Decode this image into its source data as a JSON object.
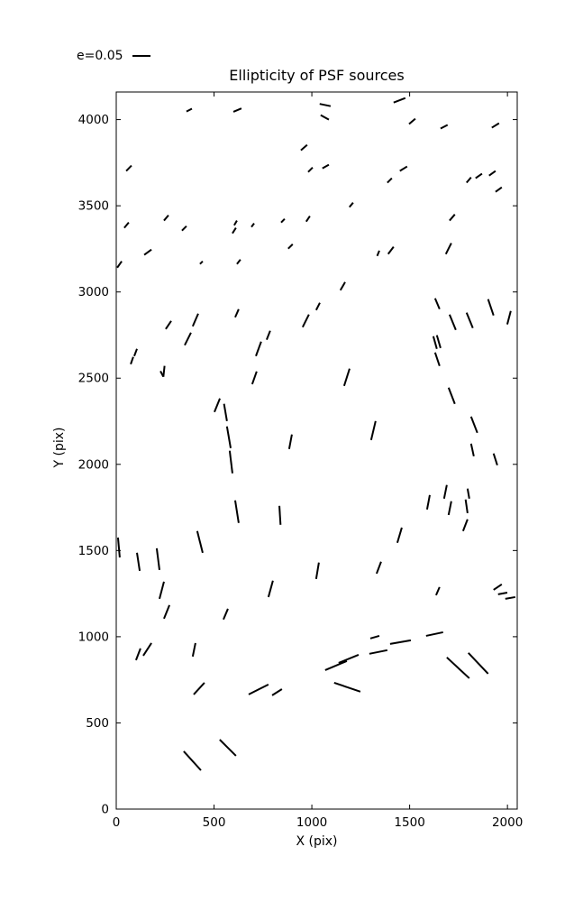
{
  "legend": {
    "label": "e=0.05"
  },
  "colors": {
    "stroke": "#000000",
    "background": "#ffffff"
  },
  "chart_data": {
    "type": "scatter",
    "subtype": "whisker-segments",
    "title": "Ellipticity of PSF sources",
    "xlabel": "X (pix)",
    "ylabel": "Y (pix)",
    "xlim": [
      0,
      2050
    ],
    "ylim": [
      0,
      4160
    ],
    "xticks": [
      0,
      500,
      1000,
      1500,
      2000
    ],
    "yticks": [
      0,
      500,
      1000,
      1500,
      2000,
      2500,
      3000,
      3500,
      4000
    ],
    "grid": false,
    "legend_position": "above-axes-top-left",
    "segments": [
      [
        359,
        4047,
        387,
        4063
      ],
      [
        599,
        4045,
        640,
        4065
      ],
      [
        1040,
        4091,
        1096,
        4078
      ],
      [
        1045,
        4026,
        1087,
        4000
      ],
      [
        1418,
        4099,
        1478,
        4125
      ],
      [
        1497,
        3974,
        1529,
        4005
      ],
      [
        1658,
        3948,
        1694,
        3969
      ],
      [
        1920,
        3953,
        1957,
        3979
      ],
      [
        51,
        3702,
        78,
        3733
      ],
      [
        944,
        3822,
        976,
        3853
      ],
      [
        981,
        3696,
        1004,
        3722
      ],
      [
        1054,
        3717,
        1087,
        3738
      ],
      [
        1450,
        3702,
        1487,
        3728
      ],
      [
        1386,
        3634,
        1409,
        3660
      ],
      [
        1791,
        3634,
        1814,
        3665
      ],
      [
        1837,
        3660,
        1870,
        3686
      ],
      [
        1906,
        3675,
        1939,
        3702
      ],
      [
        1939,
        3581,
        1971,
        3607
      ],
      [
        244,
        3414,
        267,
        3445
      ],
      [
        41,
        3372,
        64,
        3403
      ],
      [
        336,
        3356,
        359,
        3382
      ],
      [
        603,
        3387,
        617,
        3414
      ],
      [
        594,
        3340,
        612,
        3372
      ],
      [
        1192,
        3492,
        1211,
        3518
      ],
      [
        843,
        3403,
        861,
        3424
      ],
      [
        971,
        3408,
        990,
        3440
      ],
      [
        691,
        3377,
        705,
        3398
      ],
      [
        1704,
        3414,
        1731,
        3450
      ],
      [
        143,
        3215,
        180,
        3246
      ],
      [
        5,
        3141,
        28,
        3178
      ],
      [
        428,
        3162,
        442,
        3178
      ],
      [
        617,
        3162,
        635,
        3188
      ],
      [
        879,
        3251,
        902,
        3277
      ],
      [
        1334,
        3209,
        1345,
        3240
      ],
      [
        1685,
        3220,
        1713,
        3283
      ],
      [
        1390,
        3220,
        1418,
        3262
      ],
      [
        253,
        2785,
        281,
        2832
      ],
      [
        391,
        2801,
        419,
        2874
      ],
      [
        608,
        2853,
        626,
        2900
      ],
      [
        350,
        2691,
        382,
        2764
      ],
      [
        1146,
        3010,
        1170,
        3057
      ],
      [
        1022,
        2895,
        1041,
        2937
      ],
      [
        953,
        2796,
        985,
        2869
      ],
      [
        1630,
        2963,
        1653,
        2901
      ],
      [
        1704,
        2869,
        1736,
        2780
      ],
      [
        1791,
        2880,
        1823,
        2791
      ],
      [
        1901,
        2958,
        1929,
        2864
      ],
      [
        1999,
        2812,
        2017,
        2890
      ],
      [
        74,
        2581,
        87,
        2623
      ],
      [
        92,
        2628,
        106,
        2670
      ],
      [
        241,
        2508,
        247,
        2571
      ],
      [
        226,
        2541,
        241,
        2508
      ],
      [
        769,
        2723,
        787,
        2775
      ],
      [
        714,
        2628,
        741,
        2712
      ],
      [
        695,
        2465,
        718,
        2539
      ],
      [
        1165,
        2455,
        1193,
        2555
      ],
      [
        1621,
        2743,
        1639,
        2670
      ],
      [
        1639,
        2749,
        1658,
        2675
      ],
      [
        1630,
        2649,
        1653,
        2571
      ],
      [
        502,
        2304,
        530,
        2382
      ],
      [
        551,
        2351,
        566,
        2251
      ],
      [
        566,
        2220,
        585,
        2094
      ],
      [
        580,
        2079,
        594,
        1948
      ],
      [
        1699,
        2445,
        1731,
        2351
      ],
      [
        1814,
        2277,
        1846,
        2183
      ],
      [
        884,
        2089,
        898,
        2173
      ],
      [
        1303,
        2141,
        1326,
        2251
      ],
      [
        1814,
        2120,
        1828,
        2047
      ],
      [
        1929,
        2063,
        1948,
        1995
      ],
      [
        834,
        1759,
        840,
        1649
      ],
      [
        608,
        1791,
        626,
        1660
      ],
      [
        1676,
        1801,
        1690,
        1880
      ],
      [
        1589,
        1738,
        1603,
        1822
      ],
      [
        1699,
        1706,
        1713,
        1786
      ],
      [
        1796,
        1859,
        1805,
        1801
      ],
      [
        1786,
        1796,
        1796,
        1717
      ],
      [
        1773,
        1613,
        1796,
        1681
      ],
      [
        1437,
        1545,
        1460,
        1633
      ],
      [
        414,
        1613,
        442,
        1487
      ],
      [
        9,
        1575,
        18,
        1460
      ],
      [
        106,
        1487,
        120,
        1382
      ],
      [
        207,
        1513,
        221,
        1387
      ],
      [
        1022,
        1335,
        1036,
        1430
      ],
      [
        1331,
        1366,
        1354,
        1435
      ],
      [
        221,
        1220,
        244,
        1319
      ],
      [
        244,
        1105,
        272,
        1183
      ],
      [
        548,
        1100,
        571,
        1162
      ],
      [
        778,
        1230,
        801,
        1325
      ],
      [
        1635,
        1241,
        1653,
        1288
      ],
      [
        1929,
        1272,
        1971,
        1304
      ],
      [
        1952,
        1246,
        1999,
        1256
      ],
      [
        1989,
        1220,
        2040,
        1230
      ],
      [
        101,
        864,
        124,
        932
      ],
      [
        138,
        890,
        180,
        963
      ],
      [
        391,
        885,
        405,
        963
      ],
      [
        396,
        665,
        451,
        733
      ],
      [
        345,
        335,
        433,
        225
      ],
      [
        529,
        403,
        612,
        309
      ],
      [
        1068,
        806,
        1179,
        859
      ],
      [
        1137,
        848,
        1239,
        895
      ],
      [
        1294,
        901,
        1386,
        922
      ],
      [
        1299,
        990,
        1345,
        1005
      ],
      [
        1400,
        958,
        1506,
        979
      ],
      [
        1584,
        1005,
        1671,
        1026
      ],
      [
        1114,
        733,
        1248,
        681
      ],
      [
        677,
        665,
        778,
        723
      ],
      [
        797,
        660,
        847,
        696
      ],
      [
        1690,
        880,
        1805,
        759
      ],
      [
        1800,
        906,
        1901,
        785
      ]
    ]
  }
}
